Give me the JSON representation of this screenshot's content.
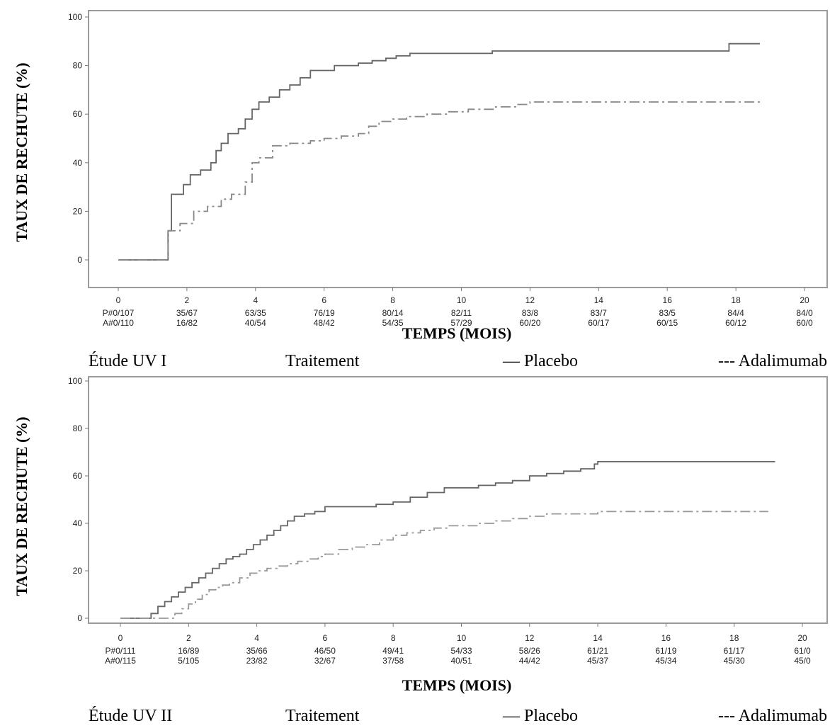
{
  "chart_data": [
    {
      "type": "line",
      "title": "",
      "xlabel": "TEMPS (MOIS)",
      "ylabel": "TAUX DE RECHUTE (%)",
      "xlim": [
        0,
        20
      ],
      "ylim": [
        0,
        100
      ],
      "x_ticks": [
        0,
        2,
        4,
        6,
        8,
        10,
        12,
        14,
        16,
        18,
        20
      ],
      "y_ticks": [
        0,
        20,
        40,
        60,
        80,
        100
      ],
      "series": [
        {
          "name": "Placebo",
          "style": "solid",
          "color": "#666666",
          "x": [
            0,
            1.4,
            1.45,
            1.55,
            1.9,
            2.1,
            2.4,
            2.7,
            2.85,
            3.0,
            3.2,
            3.5,
            3.7,
            3.9,
            4.1,
            4.4,
            4.7,
            5.0,
            5.3,
            5.6,
            5.9,
            6.3,
            6.6,
            7.0,
            7.4,
            7.8,
            8.1,
            8.5,
            9.0,
            10.0,
            10.9,
            12.0,
            14.0,
            16.0,
            17.6,
            17.8,
            18.7
          ],
          "y": [
            0,
            0,
            12,
            27,
            31,
            35,
            37,
            40,
            45,
            48,
            52,
            54,
            58,
            62,
            65,
            67,
            70,
            72,
            75,
            78,
            78,
            80,
            80,
            81,
            82,
            83,
            84,
            85,
            85,
            85,
            86,
            86,
            86,
            86,
            86,
            89,
            89
          ]
        },
        {
          "name": "Adalimumab",
          "style": "dashed",
          "color": "#888888",
          "x": [
            0,
            1.4,
            1.45,
            1.8,
            2.2,
            2.6,
            3.0,
            3.3,
            3.7,
            3.9,
            4.1,
            4.5,
            5.0,
            5.6,
            6.0,
            6.5,
            7.0,
            7.3,
            7.6,
            8.0,
            8.4,
            9.0,
            9.6,
            10.2,
            11.0,
            11.6,
            12.0,
            13.0,
            14.0,
            16.0,
            18.0,
            18.7
          ],
          "y": [
            0,
            0,
            12,
            15,
            20,
            22,
            25,
            27,
            32,
            40,
            42,
            47,
            48,
            49,
            50,
            51,
            52,
            55,
            57,
            58,
            59,
            60,
            61,
            62,
            63,
            64,
            65,
            65,
            65,
            65,
            65,
            65
          ]
        }
      ],
      "risk_table": {
        "columns": [
          {
            "p": "P#0/107",
            "a": "A#0/110"
          },
          {
            "p": "35/67",
            "a": "16/82"
          },
          {
            "p": "63/35",
            "a": "40/54"
          },
          {
            "p": "76/19",
            "a": "48/42"
          },
          {
            "p": "80/14",
            "a": "54/35"
          },
          {
            "p": "82/11",
            "a": "57/29"
          },
          {
            "p": "83/8",
            "a": "60/20"
          },
          {
            "p": "83/7",
            "a": "60/17"
          },
          {
            "p": "83/5",
            "a": "60/15"
          },
          {
            "p": "84/4",
            "a": "60/12"
          },
          {
            "p": "84/0",
            "a": "60/0"
          }
        ]
      },
      "caption": {
        "study": "Étude UV I",
        "treatment": "Traitement",
        "placebo": "— Placebo",
        "adalimumab": "--- Adalimumab"
      }
    },
    {
      "type": "line",
      "title": "",
      "xlabel": "TEMPS (MOIS)",
      "ylabel": "TAUX DE RECHUTE (%)",
      "xlim": [
        0,
        20
      ],
      "ylim": [
        0,
        100
      ],
      "x_ticks": [
        0,
        2,
        4,
        6,
        8,
        10,
        12,
        14,
        16,
        18,
        20
      ],
      "y_ticks": [
        0,
        20,
        40,
        60,
        80,
        100
      ],
      "series": [
        {
          "name": "Placebo",
          "style": "solid",
          "color": "#666666",
          "x": [
            0,
            0.7,
            0.9,
            1.1,
            1.3,
            1.5,
            1.7,
            1.9,
            2.1,
            2.3,
            2.5,
            2.7,
            2.9,
            3.1,
            3.3,
            3.5,
            3.7,
            3.9,
            4.1,
            4.3,
            4.5,
            4.7,
            4.9,
            5.1,
            5.4,
            5.7,
            6.0,
            6.4,
            7.0,
            7.5,
            8.0,
            8.5,
            9.0,
            9.5,
            10.0,
            10.5,
            11.0,
            11.5,
            12.0,
            12.5,
            13.0,
            13.5,
            13.9,
            14.0,
            16.0,
            18.0,
            19.2
          ],
          "y": [
            0,
            0,
            2,
            5,
            7,
            9,
            11,
            13,
            15,
            17,
            19,
            21,
            23,
            25,
            26,
            27,
            29,
            31,
            33,
            35,
            37,
            39,
            41,
            43,
            44,
            45,
            47,
            47,
            47,
            48,
            49,
            51,
            53,
            55,
            55,
            56,
            57,
            58,
            60,
            61,
            62,
            63,
            65,
            66,
            66,
            66,
            66
          ]
        },
        {
          "name": "Adalimumab",
          "style": "dashed",
          "color": "#999999",
          "x": [
            0,
            1.4,
            1.6,
            1.8,
            2.0,
            2.2,
            2.4,
            2.6,
            2.8,
            3.0,
            3.2,
            3.5,
            3.8,
            4.0,
            4.3,
            4.6,
            4.9,
            5.2,
            5.5,
            5.8,
            6.0,
            6.4,
            6.8,
            7.2,
            7.6,
            8.0,
            8.4,
            8.8,
            9.2,
            9.6,
            10.0,
            10.5,
            11.0,
            11.5,
            12.0,
            12.5,
            13.0,
            13.5,
            14.0,
            16.0,
            18.0,
            19.0
          ],
          "y": [
            0,
            0,
            2,
            4,
            6,
            8,
            10,
            12,
            13,
            14,
            15,
            17,
            19,
            20,
            21,
            22,
            23,
            24,
            25,
            26,
            27,
            29,
            30,
            31,
            33,
            35,
            36,
            37,
            38,
            39,
            39,
            40,
            41,
            42,
            43,
            44,
            44,
            44,
            45,
            45,
            45,
            45
          ]
        }
      ],
      "risk_table": {
        "columns": [
          {
            "p": "P#0/111",
            "a": "A#0/115"
          },
          {
            "p": "16/89",
            "a": "5/105"
          },
          {
            "p": "35/66",
            "a": "23/82"
          },
          {
            "p": "46/50",
            "a": "32/67"
          },
          {
            "p": "49/41",
            "a": "37/58"
          },
          {
            "p": "54/33",
            "a": "40/51"
          },
          {
            "p": "58/26",
            "a": "44/42"
          },
          {
            "p": "61/21",
            "a": "45/37"
          },
          {
            "p": "61/19",
            "a": "45/34"
          },
          {
            "p": "61/17",
            "a": "45/30"
          },
          {
            "p": "61/0",
            "a": "45/0"
          }
        ]
      },
      "caption": {
        "study": "Étude UV II",
        "treatment": "Traitement",
        "placebo": "— Placebo",
        "adalimumab": "--- Adalimumab"
      }
    }
  ]
}
